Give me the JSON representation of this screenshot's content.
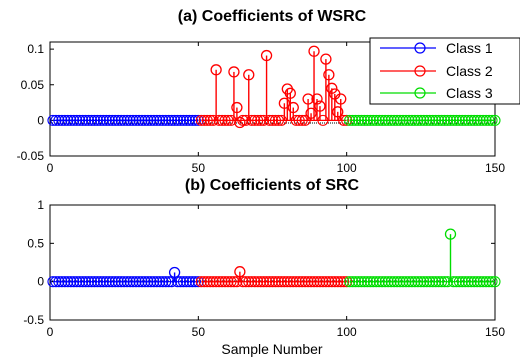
{
  "chart_data": [
    {
      "type": "stem",
      "title": "(a) Coefficients of WSRC",
      "xlabel": "",
      "ylabel": "",
      "xlim": [
        0,
        150
      ],
      "ylim": [
        -0.05,
        0.11
      ],
      "xticks": [
        "0",
        "50",
        "100",
        "150"
      ],
      "yticks": [
        "-0.05",
        "0",
        "0.05",
        "0.1"
      ],
      "ytick_values": [
        -0.05,
        0,
        0.05,
        0.1
      ],
      "legend": {
        "position": "top-right",
        "entries": [
          "Class 1",
          "Class 2",
          "Class 3"
        ]
      },
      "series": [
        {
          "name": "Class 1",
          "color": "#0000ff",
          "x_range": [
            1,
            50
          ],
          "values": []
        },
        {
          "name": "Class 2",
          "color": "#ff0000",
          "x_range": [
            51,
            100
          ],
          "values": [
            {
              "x": 56,
              "y": 0.071
            },
            {
              "x": 62,
              "y": 0.068
            },
            {
              "x": 63,
              "y": 0.018
            },
            {
              "x": 64,
              "y": -0.003
            },
            {
              "x": 67,
              "y": 0.064
            },
            {
              "x": 73,
              "y": 0.091
            },
            {
              "x": 79,
              "y": 0.024
            },
            {
              "x": 80,
              "y": 0.044
            },
            {
              "x": 81,
              "y": 0.038
            },
            {
              "x": 82,
              "y": 0.018
            },
            {
              "x": 87,
              "y": 0.03
            },
            {
              "x": 88,
              "y": 0.01
            },
            {
              "x": 89,
              "y": 0.097
            },
            {
              "x": 90,
              "y": 0.03
            },
            {
              "x": 91,
              "y": 0.02
            },
            {
              "x": 93,
              "y": 0.086
            },
            {
              "x": 94,
              "y": 0.064
            },
            {
              "x": 95,
              "y": 0.045
            },
            {
              "x": 96,
              "y": 0.037
            },
            {
              "x": 97,
              "y": 0.012
            },
            {
              "x": 98,
              "y": 0.03
            }
          ]
        },
        {
          "name": "Class 3",
          "color": "#00ff00",
          "x_range": [
            101,
            150
          ],
          "values": []
        }
      ]
    },
    {
      "type": "stem",
      "title": "(b) Coefficients of SRC",
      "xlabel": "Sample Number",
      "ylabel": "",
      "xlim": [
        0,
        150
      ],
      "ylim": [
        -0.5,
        1
      ],
      "xticks": [
        "0",
        "50",
        "100",
        "150"
      ],
      "yticks": [
        "-0.5",
        "0",
        "0.5",
        "1"
      ],
      "ytick_values": [
        -0.5,
        0,
        0.5,
        1
      ],
      "series": [
        {
          "name": "Class 1",
          "color": "#0000ff",
          "x_range": [
            1,
            50
          ],
          "values": [
            {
              "x": 42,
              "y": 0.12
            }
          ]
        },
        {
          "name": "Class 2",
          "color": "#ff0000",
          "x_range": [
            51,
            100
          ],
          "values": [
            {
              "x": 64,
              "y": 0.13
            }
          ]
        },
        {
          "name": "Class 3",
          "color": "#00ff00",
          "x_range": [
            101,
            150
          ],
          "values": [
            {
              "x": 135,
              "y": 0.62
            }
          ]
        }
      ]
    }
  ]
}
